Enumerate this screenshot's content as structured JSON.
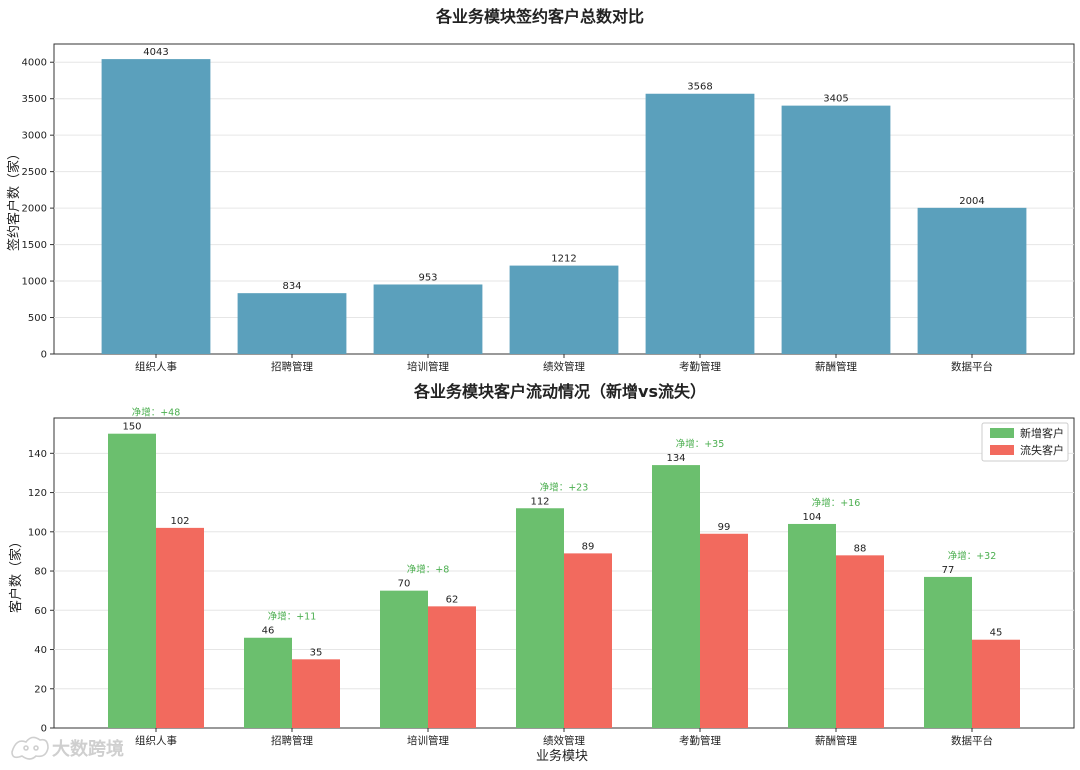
{
  "chart_data": [
    {
      "type": "bar",
      "title": "各业务模块签约客户总数对比",
      "xlabel": "",
      "ylabel": "签约客户数（家）",
      "categories": [
        "组织人事",
        "招聘管理",
        "培训管理",
        "绩效管理",
        "考勤管理",
        "薪酬管理",
        "数据平台"
      ],
      "values": [
        4043,
        834,
        953,
        1212,
        3568,
        3405,
        2004
      ],
      "ylim": [
        0,
        4250
      ],
      "yticks": [
        0,
        500,
        1000,
        1500,
        2000,
        2500,
        3000,
        3500,
        4000
      ],
      "grid": true,
      "color": "#5ba0bc"
    },
    {
      "type": "bar",
      "title": "各业务模块客户流动情况（新增vs流失）",
      "xlabel": "业务模块",
      "ylabel": "客户数（家）",
      "categories": [
        "组织人事",
        "招聘管理",
        "培训管理",
        "绩效管理",
        "考勤管理",
        "薪酬管理",
        "数据平台"
      ],
      "series": [
        {
          "name": "新增客户",
          "values": [
            150,
            46,
            70,
            112,
            134,
            104,
            77
          ],
          "color": "#6bbf6e"
        },
        {
          "name": "流失客户",
          "values": [
            102,
            35,
            62,
            89,
            99,
            88,
            45
          ],
          "color": "#f26a5e"
        }
      ],
      "annotations": [
        "净增：+48",
        "净增：+11",
        "净增：+8",
        "净增：+23",
        "净增：+35",
        "净增：+16",
        "净增：+32"
      ],
      "ylim": [
        0,
        158
      ],
      "yticks": [
        0,
        20,
        40,
        60,
        80,
        100,
        120,
        140
      ],
      "grid": true,
      "legend": "top-right"
    }
  ],
  "watermark": "大数跨境"
}
